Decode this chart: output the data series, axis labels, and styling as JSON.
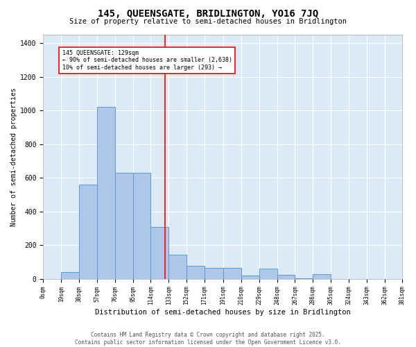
{
  "title": "145, QUEENSGATE, BRIDLINGTON, YO16 7JQ",
  "subtitle": "Size of property relative to semi-detached houses in Bridlington",
  "xlabel": "Distribution of semi-detached houses by size in Bridlington",
  "ylabel": "Number of semi-detached properties",
  "bar_color": "#aec6e8",
  "bar_edge_color": "#5b9bd5",
  "background_color": "#dce9f7",
  "grid_color": "#ffffff",
  "vline_x": 129,
  "vline_color": "red",
  "annotation_text": "145 QUEENSGATE: 129sqm\n← 90% of semi-detached houses are smaller (2,638)\n10% of semi-detached houses are larger (293) →",
  "annotation_box_color": "red",
  "bin_edges": [
    0,
    19,
    38,
    57,
    76,
    95,
    114,
    133,
    152,
    171,
    191,
    210,
    229,
    248,
    267,
    286,
    305,
    324,
    343,
    362,
    381
  ],
  "counts": [
    0,
    40,
    560,
    1020,
    630,
    630,
    310,
    145,
    80,
    65,
    65,
    20,
    60,
    25,
    5,
    30,
    0,
    0,
    0,
    0
  ],
  "ylim": [
    0,
    1450
  ],
  "yticks": [
    0,
    200,
    400,
    600,
    800,
    1000,
    1200,
    1400
  ],
  "footer_text": "Contains HM Land Registry data © Crown copyright and database right 2025.\nContains public sector information licensed under the Open Government Licence v3.0.",
  "figsize": [
    6.0,
    5.0
  ],
  "dpi": 100
}
